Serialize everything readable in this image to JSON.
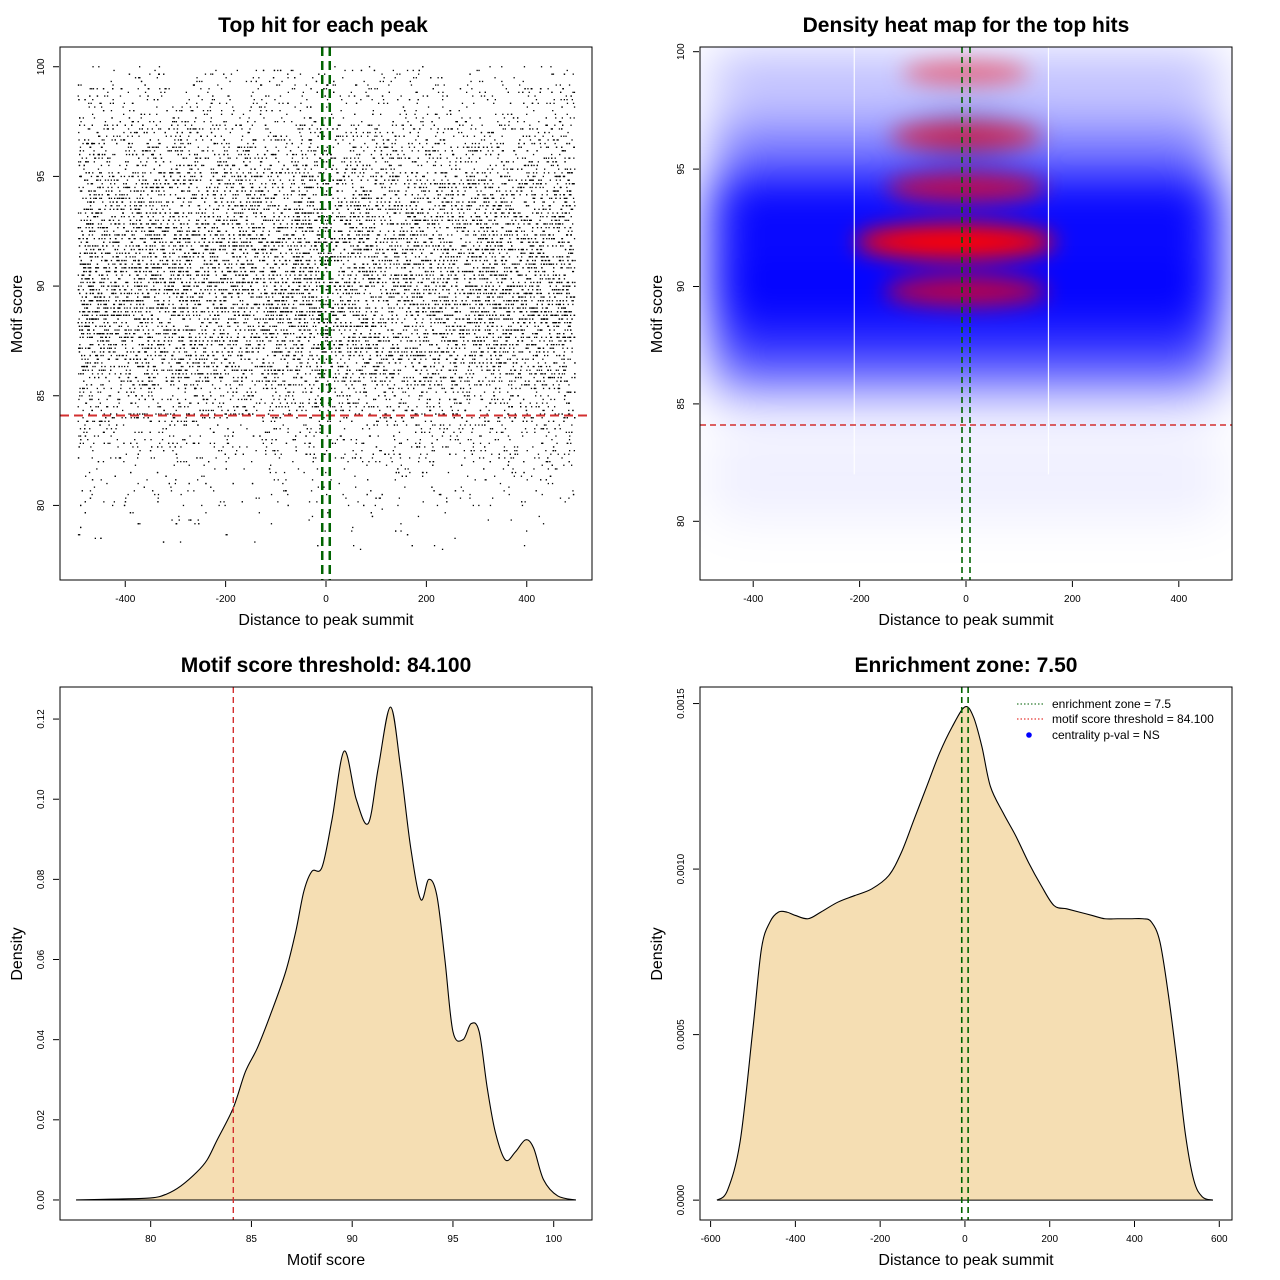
{
  "chart_data": [
    {
      "type": "scatter",
      "title": "Top hit for each peak",
      "xlabel": "Distance to peak summit",
      "ylabel": "Motif score",
      "xlim": [
        -530,
        530
      ],
      "ylim": [
        76.6,
        100.9
      ],
      "xticks": [
        -400,
        -200,
        0,
        200,
        400
      ],
      "yticks": [
        80,
        85,
        90,
        95,
        100
      ],
      "x_range": [
        -495,
        495
      ],
      "score_density": {
        "scores": [
          78,
          80,
          82,
          84,
          85.5,
          87,
          88.5,
          89.7,
          90.8,
          91.9,
          93,
          94,
          95.2,
          96.3,
          97.5,
          98.5,
          99.3,
          100
        ],
        "weights": [
          0.2,
          0.5,
          1.8,
          4,
          7,
          10,
          11,
          13,
          10,
          13.5,
          9,
          11,
          6,
          7,
          3,
          2,
          2.6,
          1.2
        ]
      },
      "approx_points": 14000,
      "threshold": 84.1,
      "enrichment_lines": [
        -7.5,
        7.5
      ]
    },
    {
      "type": "heatmap",
      "title": "Density heat map for the top hits",
      "xlabel": "Distance to peak summit",
      "ylabel": "Motif score",
      "xlim": [
        -500,
        500
      ],
      "ylim": [
        77.5,
        100.2
      ],
      "xticks": [
        -400,
        -200,
        0,
        200,
        400
      ],
      "yticks": [
        80,
        85,
        90,
        95,
        100
      ],
      "hotspots": [
        {
          "x": -20,
          "y": 91.9,
          "intensity": 1.0
        },
        {
          "x": 0,
          "y": 94.2,
          "intensity": 0.55
        },
        {
          "x": 0,
          "y": 96.4,
          "intensity": 0.45
        },
        {
          "x": 0,
          "y": 89.8,
          "intensity": 0.6
        },
        {
          "x": 0,
          "y": 99.1,
          "intensity": 0.2
        }
      ],
      "threshold": 84.1,
      "enrichment_lines": [
        -7.5,
        7.5
      ]
    },
    {
      "type": "area",
      "title": "Motif score threshold: 84.100",
      "xlabel": "Motif score",
      "ylabel": "Density",
      "xlim": [
        75.5,
        101.9
      ],
      "ylim": [
        -0.005,
        0.128
      ],
      "xticks": [
        80,
        85,
        90,
        95,
        100
      ],
      "yticks": [
        0.0,
        0.02,
        0.04,
        0.06,
        0.08,
        0.1,
        0.12
      ],
      "ytick_labels": [
        "0.00",
        "0.02",
        "0.04",
        "0.06",
        "0.08",
        "0.10",
        "0.12"
      ],
      "x": [
        76.3,
        78,
        80,
        80.8,
        81.5,
        82.3,
        82.8,
        83.3,
        84.1,
        84.7,
        85.3,
        86,
        86.7,
        87.2,
        87.6,
        88,
        88.5,
        89,
        89.6,
        90.2,
        90.8,
        91.3,
        91.9,
        92.4,
        92.9,
        93.4,
        93.8,
        94.2,
        94.6,
        95,
        95.5,
        95.9,
        96.3,
        96.7,
        97.1,
        97.6,
        98.1,
        98.6,
        99,
        99.5,
        100.2,
        101.1
      ],
      "y": [
        0,
        0.0002,
        0.0005,
        0.0015,
        0.0035,
        0.007,
        0.01,
        0.015,
        0.023,
        0.032,
        0.038,
        0.047,
        0.057,
        0.067,
        0.077,
        0.082,
        0.083,
        0.095,
        0.112,
        0.1,
        0.094,
        0.108,
        0.123,
        0.108,
        0.088,
        0.075,
        0.08,
        0.076,
        0.06,
        0.042,
        0.04,
        0.044,
        0.042,
        0.028,
        0.017,
        0.01,
        0.012,
        0.015,
        0.013,
        0.005,
        0.001,
        0
      ],
      "threshold": 84.1
    },
    {
      "type": "area",
      "title": "Enrichment zone: 7.50",
      "xlabel": "Distance to peak summit",
      "ylabel": "Density",
      "xlim": [
        -625,
        630
      ],
      "ylim": [
        -6e-05,
        0.00155
      ],
      "xticks": [
        -600,
        -400,
        -200,
        0,
        200,
        400,
        600
      ],
      "yticks": [
        0.0,
        0.0005,
        0.001,
        0.0015
      ],
      "ytick_labels": [
        "0.0000",
        "0.0005",
        "0.0010",
        "0.0015"
      ],
      "x": [
        -585,
        -560,
        -530,
        -500,
        -480,
        -460,
        -440,
        -420,
        -400,
        -370,
        -340,
        -300,
        -260,
        -220,
        -180,
        -150,
        -120,
        -90,
        -60,
        -30,
        0,
        20,
        40,
        60,
        90,
        120,
        150,
        180,
        210,
        240,
        270,
        300,
        330,
        360,
        390,
        420,
        440,
        460,
        480,
        500,
        520,
        540,
        560,
        585
      ],
      "y": [
        0,
        3e-05,
        0.00018,
        0.00052,
        0.00076,
        0.00084,
        0.00087,
        0.00087,
        0.00086,
        0.00085,
        0.00087,
        0.0009,
        0.00092,
        0.00094,
        0.00098,
        0.00105,
        0.00115,
        0.00125,
        0.00135,
        0.00143,
        0.00149,
        0.00146,
        0.00137,
        0.00125,
        0.00117,
        0.0011,
        0.00102,
        0.00095,
        0.00089,
        0.00088,
        0.00087,
        0.00086,
        0.00085,
        0.00085,
        0.00085,
        0.00085,
        0.00084,
        0.00078,
        0.00062,
        0.00042,
        0.0002,
        6e-05,
        1e-05,
        0
      ],
      "enrichment_lines": [
        -7.5,
        7.5
      ],
      "legend": {
        "position": "top-right",
        "entries": [
          {
            "label": "enrichment zone = 7.5",
            "color": "#2e7d32",
            "style": "dotted-line"
          },
          {
            "label": "motif score threshold = 84.100",
            "color": "#e53935",
            "style": "dotted-line"
          },
          {
            "label": "centrality p-val = NS",
            "color": "#0000ff",
            "style": "dot"
          }
        ]
      }
    }
  ],
  "colors": {
    "fill": "#f5deb3",
    "threshold_line": "#d32f2f",
    "enrichment_line": "#006400",
    "points": "#000000",
    "heat_low": "#ffffff",
    "heat_mid": "#0000ff",
    "heat_high": "#ff0000"
  }
}
